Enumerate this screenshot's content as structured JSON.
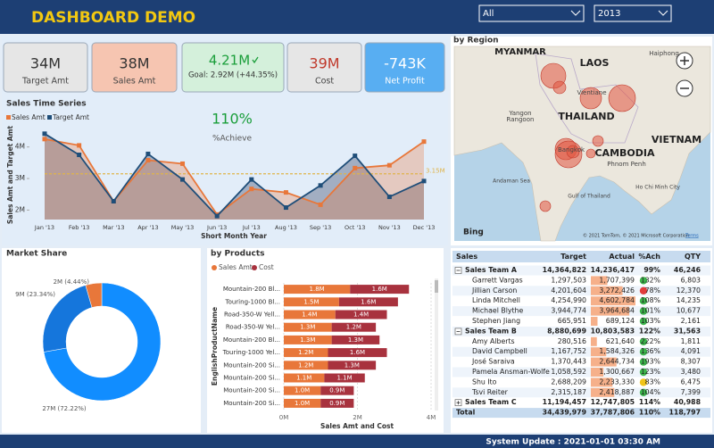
{
  "header": {
    "title": "DASHBOARD DEMO",
    "filters": [
      "All",
      "2013"
    ]
  },
  "kpis": [
    {
      "value": "34M",
      "label": "Target Amt",
      "color": "#e6e6e6",
      "text_color": "#333333"
    },
    {
      "value": "38M",
      "label": "Sales Amt",
      "color": "#f6c5b1",
      "text_color": "#333333"
    },
    {
      "value": "4.21M",
      "label": "Goal: 2.92M (+44.35%)",
      "color": "#d4f0db",
      "text_color": "#1a9e3a"
    },
    {
      "value": "39M",
      "label": "Cost",
      "color": "#e6e6e6",
      "text_color": "#c0392b"
    },
    {
      "value": "-743K",
      "label": "Net Profit",
      "color": "#58aef2",
      "text_color": "#ffffff"
    }
  ],
  "chart_data": [
    {
      "type": "line",
      "title": "Sales Time Series",
      "x_label": "Short Month Year",
      "y_label": "Sales Amt and Target Amt",
      "categories": [
        "Jan '13",
        "Feb '13",
        "Mar '13",
        "Apr '13",
        "May '13",
        "Jun '13",
        "Jul '13",
        "Aug '13",
        "Sep '13",
        "Oct '13",
        "Nov '13",
        "Dec '13"
      ],
      "series": [
        {
          "name": "Sales Amt",
          "color": "#e8773a",
          "values": [
            4250000,
            4050000,
            2280000,
            3580000,
            3470000,
            1860000,
            2670000,
            2560000,
            2170000,
            3330000,
            3420000,
            4170000
          ]
        },
        {
          "name": "Target Amt",
          "color": "#1f4e79",
          "values": [
            4420000,
            3750000,
            2280000,
            3780000,
            2970000,
            1810000,
            2970000,
            2080000,
            2780000,
            3720000,
            2420000,
            2920000
          ]
        }
      ],
      "ylim": [
        1700000,
        4500000
      ],
      "yticks": [
        {
          "value": 2000000,
          "label": "2M"
        },
        {
          "value": 3000000,
          "label": "3M"
        },
        {
          "value": 4000000,
          "label": "4M"
        }
      ],
      "reference_line": {
        "value": 3150000,
        "label": "3.15M",
        "color": "#e0b44a"
      },
      "annotation": {
        "value": "110%",
        "label": "%Achieve"
      }
    },
    {
      "type": "pie",
      "title": "Market Share",
      "categories": [
        "27M",
        "9M",
        "2M"
      ],
      "values": [
        72.22,
        23.34,
        4.44
      ],
      "value_labels": [
        "27M (72.22%)",
        "9M (23.34%)",
        "2M (4.44%)"
      ],
      "colors": [
        "#118dff",
        "#1576dc",
        "#e8773a"
      ]
    },
    {
      "type": "bar",
      "title": "by Products",
      "x_label": "Sales Amt and Cost",
      "y_label": "EnglishProductName",
      "categories": [
        "Mountain-200 Bl...",
        "Touring-1000 Bl...",
        "Road-350-W Yell...",
        "Road-350-W Yel...",
        "Mountain-200 Bl...",
        "Touring-1000 Yel...",
        "Mountain-200 Si...",
        "Mountain-200 Si...",
        "Mountain-200 Si...",
        "Mountain-200 Si..."
      ],
      "series": [
        {
          "name": "Sales Amt",
          "color": "#e8773a",
          "values": [
            1800000,
            1500000,
            1400000,
            1300000,
            1300000,
            1200000,
            1200000,
            1100000,
            1000000,
            1000000
          ],
          "value_labels": [
            "1.8M",
            "1.5M",
            "1.4M",
            "1.3M",
            "1.3M",
            "1.2M",
            "1.2M",
            "1.1M",
            "1.0M",
            "1.0M"
          ]
        },
        {
          "name": "Cost",
          "color": "#a8323e",
          "values": [
            1600000,
            1600000,
            1400000,
            1200000,
            1300000,
            1600000,
            1300000,
            1100000,
            900000,
            900000
          ],
          "value_labels": [
            "1.6M",
            "1.6M",
            "1.4M",
            "1.2M",
            "1.3M",
            "1.6M",
            "1.3M",
            "1.1M",
            "0.9M",
            "0.9M"
          ]
        }
      ],
      "xlim": [
        0,
        4000000
      ],
      "xticks": [
        {
          "value": 0,
          "label": "0M"
        },
        {
          "value": 2000000,
          "label": "2M"
        },
        {
          "value": 4000000,
          "label": "4M"
        }
      ]
    }
  ],
  "map": {
    "title": "by Region",
    "labels": [
      "MYANMAR",
      "LAOS",
      "THAILAND",
      "CAMBODIA",
      "VIETNAM",
      "Haiphong",
      "Vientiane",
      "Yangon",
      "Rangoon",
      "Bangkok",
      "Phnom Penh",
      "Andaman Sea",
      "Gulf of Thailand",
      "Ho Chi Minh City"
    ],
    "logo": "Bing",
    "attribution": "© 2021 TomTom, © 2021 Microsoft Corporation",
    "terms": "Terms"
  },
  "table": {
    "columns": [
      "Sales",
      "Target",
      "Actual",
      "%Ach",
      "QTY"
    ],
    "rows": [
      {
        "kind": "group",
        "cells": [
          "Sales Team A",
          "14,364,822",
          "14,236,417",
          "99%",
          "46,246"
        ]
      },
      {
        "kind": "member",
        "status": "#3cb44b",
        "cells": [
          "Garrett Vargas",
          "1,297,503",
          "1,707,399",
          "132%",
          "6,803"
        ]
      },
      {
        "kind": "member",
        "status": "#e03c3c",
        "cells": [
          "Jillian Carson",
          "4,201,604",
          "3,272,426",
          "78%",
          "12,370"
        ]
      },
      {
        "kind": "member",
        "status": "#3cb44b",
        "cells": [
          "Linda Mitchell",
          "4,254,990",
          "4,602,784",
          "108%",
          "14,235"
        ]
      },
      {
        "kind": "member",
        "status": "#3cb44b",
        "cells": [
          "Michael Blythe",
          "3,944,774",
          "3,964,684",
          "101%",
          "10,677"
        ]
      },
      {
        "kind": "member",
        "status": "#3cb44b",
        "cells": [
          "Stephen Jiang",
          "665,951",
          "689,124",
          "103%",
          "2,161"
        ]
      },
      {
        "kind": "group",
        "cells": [
          "Sales Team B",
          "8,880,699",
          "10,803,583",
          "122%",
          "31,563"
        ]
      },
      {
        "kind": "member",
        "status": "#3cb44b",
        "cells": [
          "Amy Alberts",
          "280,516",
          "621,640",
          "222%",
          "1,811"
        ]
      },
      {
        "kind": "member",
        "status": "#3cb44b",
        "cells": [
          "David Campbell",
          "1,167,752",
          "1,584,326",
          "136%",
          "4,091"
        ]
      },
      {
        "kind": "member",
        "status": "#3cb44b",
        "cells": [
          "José Saraiva",
          "1,370,443",
          "2,644,734",
          "193%",
          "8,307"
        ]
      },
      {
        "kind": "member",
        "status": "#3cb44b",
        "cells": [
          "Pamela Ansman-Wolfe",
          "1,058,592",
          "1,300,667",
          "123%",
          "3,480"
        ]
      },
      {
        "kind": "member",
        "status": "#f0c419",
        "cells": [
          "Shu Ito",
          "2,688,209",
          "2,233,330",
          "83%",
          "6,475"
        ]
      },
      {
        "kind": "member",
        "status": "#3cb44b",
        "cells": [
          "Tsvi Reiter",
          "2,315,187",
          "2,418,887",
          "104%",
          "7,399"
        ]
      },
      {
        "kind": "group",
        "cells": [
          "Sales Team C",
          "11,194,457",
          "12,747,805",
          "114%",
          "40,988"
        ]
      },
      {
        "kind": "total",
        "cells": [
          "Total",
          "34,439,979",
          "37,787,806",
          "110%",
          "118,797"
        ]
      }
    ]
  },
  "footer": "System Update : 2021-01-01 03:30 AM"
}
